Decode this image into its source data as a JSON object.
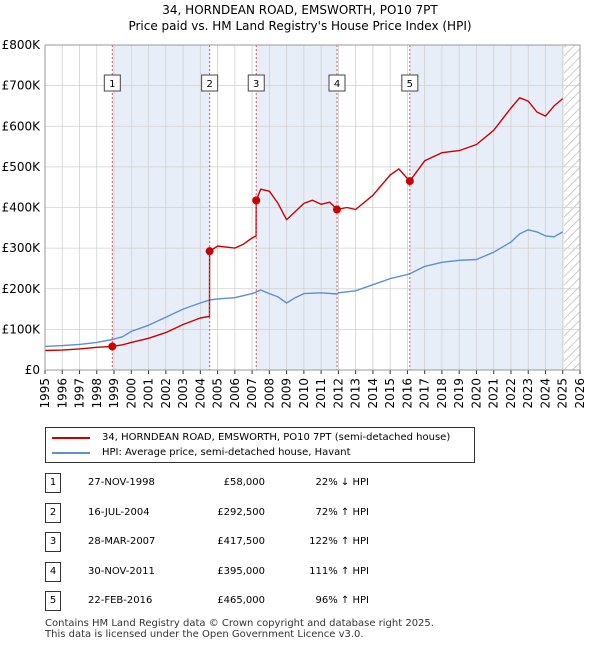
{
  "title": "34, HORNDEAN ROAD, EMSWORTH, PO10 7PT",
  "subtitle": "Price paid vs. HM Land Registry's House Price Index (HPI)",
  "colors": {
    "property": "#cc0000",
    "hpi": "#5b8fd0",
    "shade": "#e8eef8",
    "grid": "#d0d0d0",
    "marker_line": "#e05050"
  },
  "chart_data": {
    "type": "line",
    "title": "34, HORNDEAN ROAD, EMSWORTH, PO10 7PT",
    "subtitle": "Price paid vs. HM Land Registry's House Price Index (HPI)",
    "xlim": [
      1995,
      2026
    ],
    "ylim": [
      0,
      800000
    ],
    "yticks": [
      0,
      100000,
      200000,
      300000,
      400000,
      500000,
      600000,
      700000,
      800000
    ],
    "ytick_labels": [
      "£0",
      "£100K",
      "£200K",
      "£300K",
      "£400K",
      "£500K",
      "£600K",
      "£700K",
      "£800K"
    ],
    "xticks": [
      1995,
      1996,
      1997,
      1998,
      1999,
      2000,
      2001,
      2002,
      2003,
      2004,
      2005,
      2006,
      2007,
      2008,
      2009,
      2010,
      2011,
      2012,
      2013,
      2014,
      2015,
      2016,
      2017,
      2018,
      2019,
      2020,
      2021,
      2022,
      2023,
      2024,
      2025,
      2026
    ],
    "shaded_regions": [
      [
        1998.9,
        2004.54
      ],
      [
        2007.24,
        2011.92
      ],
      [
        2016.14,
        2025.08
      ]
    ],
    "hatched_after": 2025.08,
    "series": [
      {
        "name": "34, HORNDEAN ROAD, EMSWORTH, PO10 7PT (semi-detached house)",
        "color": "#cc0000",
        "x": [
          1995,
          1996,
          1997,
          1998,
          1998.9,
          1999.5,
          2000,
          2001,
          2002,
          2003,
          2004,
          2004.53,
          2004.54,
          2005,
          2006,
          2006.5,
          2007,
          2007.23,
          2007.24,
          2007.5,
          2008,
          2008.5,
          2009,
          2009.5,
          2010,
          2010.5,
          2011,
          2011.5,
          2011.92,
          2012.5,
          2013,
          2014,
          2015,
          2015.5,
          2016.13,
          2016.14,
          2017,
          2018,
          2019,
          2020,
          2021,
          2022,
          2022.5,
          2023,
          2023.5,
          2024,
          2024.5,
          2025
        ],
        "y": [
          48000,
          49000,
          52000,
          56000,
          58000,
          62000,
          68000,
          78000,
          92000,
          112000,
          128000,
          132000,
          292500,
          305000,
          300000,
          310000,
          325000,
          330000,
          417500,
          445000,
          440000,
          410000,
          370000,
          390000,
          410000,
          418000,
          408000,
          413000,
          395000,
          400000,
          395000,
          430000,
          480000,
          495000,
          465000,
          465000,
          515000,
          535000,
          540000,
          555000,
          590000,
          645000,
          670000,
          662000,
          635000,
          625000,
          650000,
          668000
        ]
      },
      {
        "name": "HPI: Average price, semi-detached house, Havant",
        "color": "#5b8fd0",
        "x": [
          1995,
          1996,
          1997,
          1998,
          1998.9,
          1999.5,
          2000,
          2001,
          2002,
          2003,
          2004,
          2004.54,
          2005,
          2006,
          2007,
          2007.24,
          2007.5,
          2008,
          2008.5,
          2009,
          2009.5,
          2010,
          2011,
          2011.92,
          2012,
          2013,
          2014,
          2015,
          2016,
          2016.14,
          2017,
          2018,
          2019,
          2020,
          2021,
          2022,
          2022.5,
          2023,
          2023.5,
          2024,
          2024.5,
          2025
        ],
        "y": [
          58000,
          60000,
          63000,
          68000,
          75000,
          82000,
          95000,
          110000,
          130000,
          150000,
          165000,
          172000,
          175000,
          178000,
          188000,
          192000,
          197000,
          188000,
          180000,
          165000,
          178000,
          188000,
          190000,
          187000,
          190000,
          195000,
          210000,
          225000,
          235000,
          237000,
          255000,
          265000,
          270000,
          272000,
          290000,
          315000,
          335000,
          345000,
          340000,
          330000,
          328000,
          340000
        ]
      }
    ],
    "sales": [
      {
        "id": "1",
        "x": 1998.9,
        "y": 58000
      },
      {
        "id": "2",
        "x": 2004.54,
        "y": 292500
      },
      {
        "id": "3",
        "x": 2007.24,
        "y": 417500
      },
      {
        "id": "4",
        "x": 2011.92,
        "y": 395000
      },
      {
        "id": "5",
        "x": 2016.14,
        "y": 465000
      }
    ]
  },
  "legend": {
    "property": "34, HORNDEAN ROAD, EMSWORTH, PO10 7PT (semi-detached house)",
    "hpi": "HPI: Average price, semi-detached house, Havant"
  },
  "transactions": [
    {
      "id": "1",
      "date": "27-NOV-1998",
      "price": "£58,000",
      "hpi": "22% ↓ HPI"
    },
    {
      "id": "2",
      "date": "16-JUL-2004",
      "price": "£292,500",
      "hpi": "72% ↑ HPI"
    },
    {
      "id": "3",
      "date": "28-MAR-2007",
      "price": "£417,500",
      "hpi": "122% ↑ HPI"
    },
    {
      "id": "4",
      "date": "30-NOV-2011",
      "price": "£395,000",
      "hpi": "111% ↑ HPI"
    },
    {
      "id": "5",
      "date": "22-FEB-2016",
      "price": "£465,000",
      "hpi": "96% ↑ HPI"
    }
  ],
  "footer": {
    "line1": "Contains HM Land Registry data © Crown copyright and database right 2025.",
    "line2": "This data is licensed under the Open Government Licence v3.0."
  }
}
